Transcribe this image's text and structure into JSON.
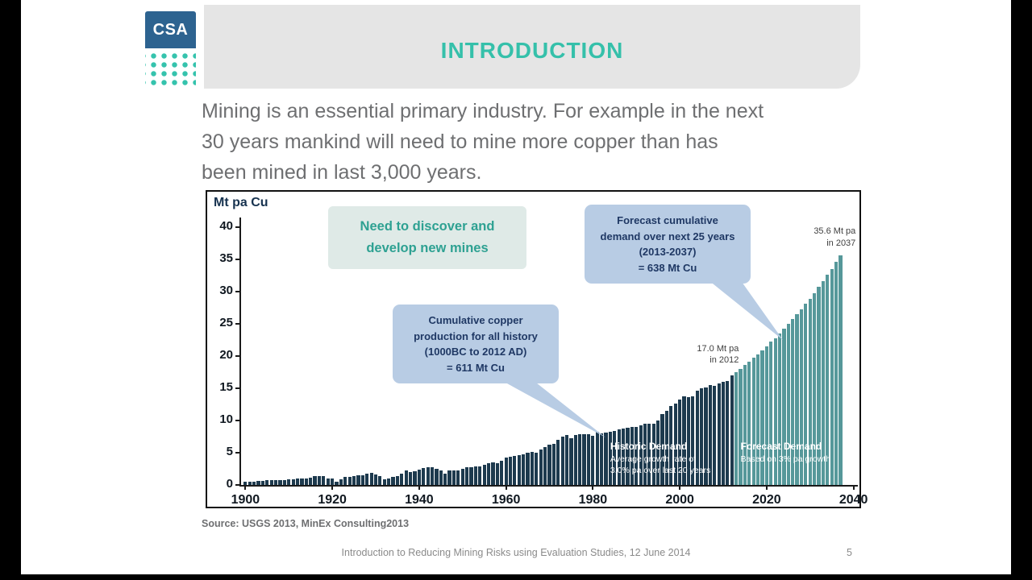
{
  "slide": {
    "logo_text": "CSA",
    "title": "INTRODUCTION",
    "body_lines": [
      "Mining is an essential primary industry. For example in the next",
      "30 years mankind will need to mine more copper than has",
      "been mined in last 3,000 years."
    ],
    "source": "Source: USGS 2013, MinEx Consulting2013",
    "footer": "Introduction to Reducing Mining Risks using Evaluation Studies, 12 June 2014",
    "page_number": "5"
  },
  "colors": {
    "title_teal": "#35c0aa",
    "header_band": "#e5e5e5",
    "logo_blue": "#2d6390",
    "logo_dot_teal": "#35c3ad",
    "historic_bar": "#1d3a4e",
    "forecast_bar": "#56989a",
    "callout_blue": "#b8cce4",
    "callout_blue_text": "#1f3864",
    "callout_teal_bg": "#dfeae7",
    "callout_teal_text": "#2ea192"
  },
  "chart_data": {
    "type": "bar",
    "title": "",
    "xlabel": "",
    "ylabel": "Mt pa Cu",
    "xlim": [
      1899,
      2041
    ],
    "ylim": [
      0,
      40
    ],
    "x_ticks": [
      1900,
      1920,
      1940,
      1960,
      1980,
      2000,
      2020,
      2040
    ],
    "y_ticks": [
      0,
      5,
      10,
      15,
      20,
      25,
      30,
      35,
      40
    ],
    "grid": false,
    "legend": "none",
    "series": [
      {
        "name": "Historic Demand",
        "color": "#1d3a4e",
        "points": [
          [
            1900,
            0.5
          ],
          [
            1901,
            0.53
          ],
          [
            1902,
            0.55
          ],
          [
            1903,
            0.6
          ],
          [
            1904,
            0.65
          ],
          [
            1905,
            0.7
          ],
          [
            1906,
            0.72
          ],
          [
            1907,
            0.72
          ],
          [
            1908,
            0.75
          ],
          [
            1909,
            0.8
          ],
          [
            1910,
            0.87
          ],
          [
            1911,
            0.89
          ],
          [
            1912,
            1.0
          ],
          [
            1913,
            1.0
          ],
          [
            1914,
            0.95
          ],
          [
            1915,
            1.1
          ],
          [
            1916,
            1.35
          ],
          [
            1917,
            1.4
          ],
          [
            1918,
            1.4
          ],
          [
            1919,
            1.0
          ],
          [
            1920,
            0.97
          ],
          [
            1921,
            0.54
          ],
          [
            1922,
            0.9
          ],
          [
            1923,
            1.2
          ],
          [
            1924,
            1.3
          ],
          [
            1925,
            1.4
          ],
          [
            1926,
            1.5
          ],
          [
            1927,
            1.5
          ],
          [
            1928,
            1.7
          ],
          [
            1929,
            1.9
          ],
          [
            1930,
            1.6
          ],
          [
            1931,
            1.4
          ],
          [
            1932,
            0.9
          ],
          [
            1933,
            1.0
          ],
          [
            1934,
            1.2
          ],
          [
            1935,
            1.4
          ],
          [
            1936,
            1.7
          ],
          [
            1937,
            2.3
          ],
          [
            1938,
            2.0
          ],
          [
            1939,
            2.1
          ],
          [
            1940,
            2.4
          ],
          [
            1941,
            2.6
          ],
          [
            1942,
            2.7
          ],
          [
            1943,
            2.7
          ],
          [
            1944,
            2.5
          ],
          [
            1945,
            2.2
          ],
          [
            1946,
            1.8
          ],
          [
            1947,
            2.3
          ],
          [
            1948,
            2.3
          ],
          [
            1949,
            2.2
          ],
          [
            1950,
            2.5
          ],
          [
            1951,
            2.7
          ],
          [
            1952,
            2.8
          ],
          [
            1953,
            2.9
          ],
          [
            1954,
            2.9
          ],
          [
            1955,
            3.1
          ],
          [
            1956,
            3.4
          ],
          [
            1957,
            3.5
          ],
          [
            1958,
            3.4
          ],
          [
            1959,
            3.7
          ],
          [
            1960,
            4.2
          ],
          [
            1961,
            4.4
          ],
          [
            1962,
            4.5
          ],
          [
            1963,
            4.6
          ],
          [
            1964,
            4.8
          ],
          [
            1965,
            5.0
          ],
          [
            1966,
            5.1
          ],
          [
            1967,
            5.0
          ],
          [
            1968,
            5.5
          ],
          [
            1969,
            5.9
          ],
          [
            1970,
            6.3
          ],
          [
            1971,
            6.4
          ],
          [
            1972,
            7.0
          ],
          [
            1973,
            7.5
          ],
          [
            1974,
            7.7
          ],
          [
            1975,
            7.3
          ],
          [
            1976,
            7.8
          ],
          [
            1977,
            7.9
          ],
          [
            1978,
            7.9
          ],
          [
            1979,
            7.9
          ],
          [
            1980,
            7.6
          ],
          [
            1981,
            8.3
          ],
          [
            1982,
            8.0
          ],
          [
            1983,
            8.1
          ],
          [
            1984,
            8.3
          ],
          [
            1985,
            8.4
          ],
          [
            1986,
            8.6
          ],
          [
            1987,
            8.7
          ],
          [
            1988,
            8.9
          ],
          [
            1989,
            9.0
          ],
          [
            1990,
            9.0
          ],
          [
            1991,
            9.3
          ],
          [
            1992,
            9.5
          ],
          [
            1993,
            9.5
          ],
          [
            1994,
            9.5
          ],
          [
            1995,
            10.0
          ],
          [
            1996,
            11.0
          ],
          [
            1997,
            11.5
          ],
          [
            1998,
            12.2
          ],
          [
            1999,
            12.6
          ],
          [
            2000,
            13.2
          ],
          [
            2001,
            13.7
          ],
          [
            2002,
            13.6
          ],
          [
            2003,
            13.7
          ],
          [
            2004,
            14.6
          ],
          [
            2005,
            15.0
          ],
          [
            2006,
            15.1
          ],
          [
            2007,
            15.5
          ],
          [
            2008,
            15.4
          ],
          [
            2009,
            15.8
          ],
          [
            2010,
            16.0
          ],
          [
            2011,
            16.1
          ],
          [
            2012,
            17.0
          ]
        ]
      },
      {
        "name": "Forecast Demand",
        "color": "#56989a",
        "points": [
          [
            2013,
            17.5
          ],
          [
            2014,
            18.0
          ],
          [
            2015,
            18.6
          ],
          [
            2016,
            19.1
          ],
          [
            2017,
            19.7
          ],
          [
            2018,
            20.3
          ],
          [
            2019,
            20.9
          ],
          [
            2020,
            21.5
          ],
          [
            2021,
            22.2
          ],
          [
            2022,
            22.8
          ],
          [
            2023,
            23.5
          ],
          [
            2024,
            24.2
          ],
          [
            2025,
            25.0
          ],
          [
            2026,
            25.7
          ],
          [
            2027,
            26.5
          ],
          [
            2028,
            27.3
          ],
          [
            2029,
            28.1
          ],
          [
            2030,
            28.9
          ],
          [
            2031,
            29.8
          ],
          [
            2032,
            30.7
          ],
          [
            2033,
            31.6
          ],
          [
            2034,
            32.6
          ],
          [
            2035,
            33.5
          ],
          [
            2036,
            34.6
          ],
          [
            2037,
            35.6
          ]
        ]
      }
    ],
    "callouts": [
      {
        "name": "need-new-mines",
        "lines": [
          "Need to discover and",
          "develop new mines"
        ]
      },
      {
        "name": "forecast-cumulative-demand",
        "lines": [
          "Forecast cumulative",
          "demand over next 25 years",
          "(2013-2037)",
          "= 638 Mt Cu"
        ]
      },
      {
        "name": "cumulative-production",
        "lines": [
          "Cumulative copper",
          "production for all history",
          "(1000BC to 2012 AD)",
          "= 611 Mt Cu"
        ]
      }
    ],
    "annotations": [
      {
        "lines": [
          "35.6 Mt pa",
          "in 2037"
        ],
        "x": 2040.5,
        "y": 40.2,
        "align": "right"
      },
      {
        "lines": [
          "17.0 Mt pa",
          "in 2012"
        ],
        "x": 2013.6,
        "y": 22.0,
        "align": "right"
      }
    ],
    "overlay_labels": [
      {
        "title": "Historic Demand",
        "lines": [
          "Average growth rate of",
          "3.0% pa over last 20 years"
        ],
        "x": 1984,
        "y": 6.9
      },
      {
        "title": "Forecast Demand",
        "lines": [
          "Based on 3% pa growth"
        ],
        "x": 2014,
        "y": 6.9
      }
    ]
  }
}
